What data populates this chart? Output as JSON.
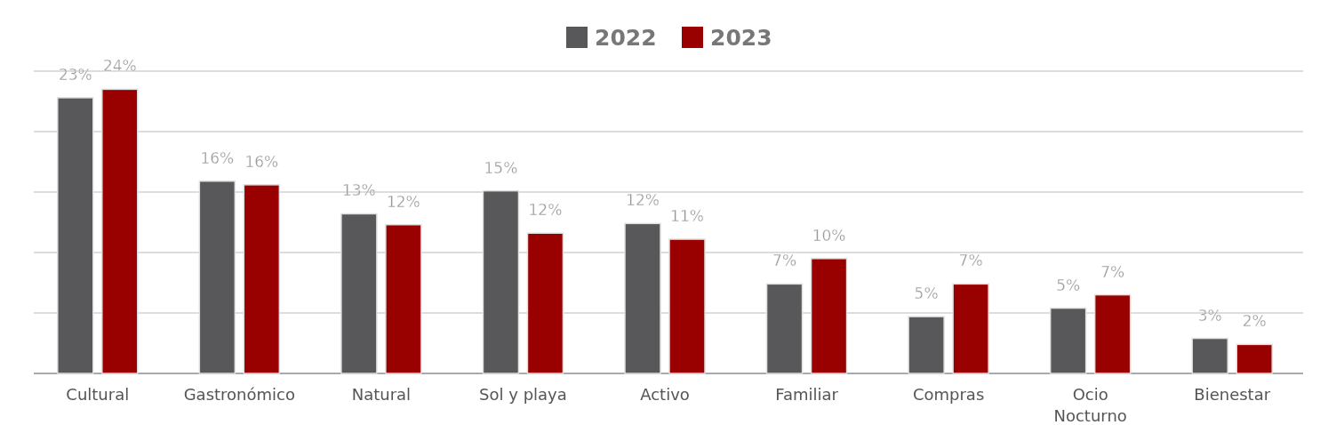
{
  "chart_data": {
    "type": "bar",
    "categories": [
      "Cultural",
      "Gastronómico",
      "Natural",
      "Sol y playa",
      "Activo",
      "Familiar",
      "Compras",
      "Ocio Nocturno",
      "Bienestar"
    ],
    "series": [
      {
        "name": "2022",
        "color": "#58585a",
        "values": [
          22.8,
          15.9,
          13.2,
          15.1,
          12.4,
          7.4,
          4.7,
          5.4,
          2.9
        ],
        "value_labels": [
          "23%",
          "16%",
          "13%",
          "15%",
          "12%",
          "7%",
          "5%",
          "5%",
          "3%"
        ]
      },
      {
        "name": "2023",
        "color": "#990000",
        "values": [
          23.5,
          15.6,
          12.3,
          11.6,
          11.1,
          9.5,
          7.4,
          6.5,
          2.4
        ],
        "value_labels": [
          "24%",
          "16%",
          "12%",
          "12%",
          "11%",
          "10%",
          "7%",
          "7%",
          "2%"
        ]
      }
    ],
    "ylim": [
      0,
      25
    ],
    "yticks": [
      {
        "value": 0,
        "label": null
      },
      {
        "value": 5,
        "label": null
      },
      {
        "value": 10,
        "label": null
      },
      {
        "value": 15,
        "label": null
      },
      {
        "value": 20,
        "label": null
      },
      {
        "value": 25,
        "label": null
      }
    ],
    "grid": "y",
    "legend": "top",
    "tick_labels": "x"
  }
}
